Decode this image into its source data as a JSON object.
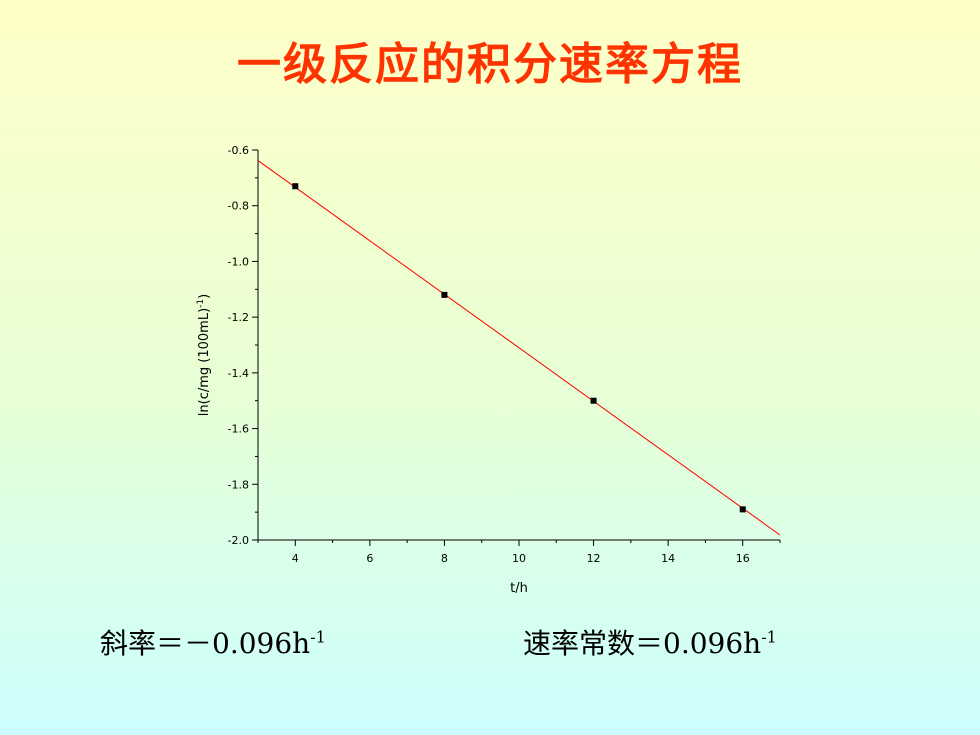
{
  "title": "一级反应的积分速率方程",
  "colors": {
    "title": "#ff3300",
    "fit_line": "#ff0000",
    "points": "#000000",
    "axes": "#000000"
  },
  "chart_data": {
    "type": "scatter",
    "title": "",
    "xlabel": "t/h",
    "ylabel": "ln(c/mg (100mL)",
    "ylabel_superscript": "-1",
    "ylabel_suffix": ")",
    "xlim": [
      3,
      17
    ],
    "ylim": [
      -2.0,
      -0.6
    ],
    "xticks": [
      4,
      6,
      8,
      10,
      12,
      14,
      16
    ],
    "yticks": [
      -2.0,
      -1.8,
      -1.6,
      -1.4,
      -1.2,
      -1.0,
      -0.8,
      -0.6
    ],
    "series": [
      {
        "x": [
          4,
          8,
          12,
          16
        ],
        "y": [
          -0.73,
          -1.12,
          -1.5,
          -1.89
        ]
      }
    ],
    "fit_line": {
      "slope": -0.096,
      "x_range": [
        3,
        17
      ]
    },
    "grid": false
  },
  "captions": {
    "left": {
      "prefix": "斜率＝－0.096h",
      "sup": "-1"
    },
    "right": {
      "prefix": "速率常数＝0.096h",
      "sup": "-1"
    }
  }
}
